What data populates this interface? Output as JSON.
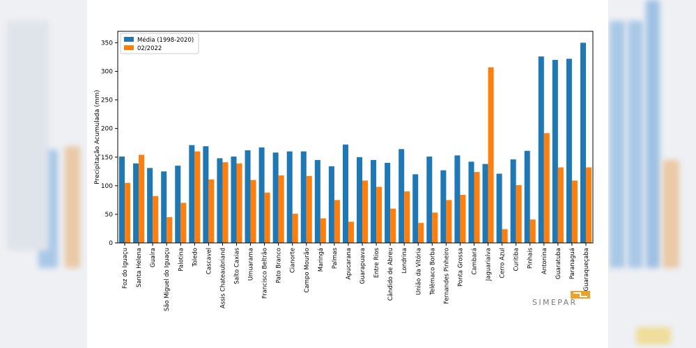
{
  "chart_data": {
    "type": "bar",
    "title": "",
    "xlabel": "",
    "ylabel": "Precipitação Acumulada (mm)",
    "ylim": [
      0,
      370
    ],
    "yticks": [
      0,
      50,
      100,
      150,
      200,
      250,
      300,
      350
    ],
    "grid": false,
    "legend_position": "top-left",
    "categories": [
      "Foz do Iguaçu",
      "Santa Helena",
      "Guaíra",
      "São Miguel do Iguaçu",
      "Palotina",
      "Toledo",
      "Cascavel",
      "Assis Chateaubriand",
      "Salto Caxias",
      "Umuarama",
      "Francisco Beltrão",
      "Pato Branco",
      "Cianorte",
      "Campo Mourão",
      "Maringá",
      "Palmas",
      "Apucarana",
      "Guarapuava",
      "Entre Rios",
      "Cândido de Abreu",
      "Londrina",
      "União da Vitória",
      "Telêmaco Borba",
      "Fernandes Pinheiro",
      "Ponta Grossa",
      "Cambará",
      "Jaguariaíva",
      "Cerro Azul",
      "Curitiba",
      "Pinhais",
      "Antonina",
      "Guaratuba",
      "Paranaguá",
      "Guaraqueçaba"
    ],
    "series": [
      {
        "name": "Média (1998-2020)",
        "color": "#1f77b4",
        "values": [
          151,
          139,
          131,
          125,
          135,
          171,
          169,
          148,
          151,
          162,
          167,
          158,
          160,
          160,
          145,
          134,
          172,
          150,
          145,
          140,
          164,
          120,
          151,
          127,
          153,
          142,
          138,
          121,
          146,
          161,
          326,
          320,
          322,
          350
        ]
      },
      {
        "name": "02/2022",
        "color": "#ff7f0e",
        "values": [
          105,
          154,
          82,
          45,
          70,
          160,
          111,
          141,
          139,
          110,
          88,
          118,
          51,
          117,
          43,
          75,
          37,
          109,
          98,
          60,
          90,
          35,
          53,
          75,
          84,
          124,
          307,
          24,
          101,
          41,
          192,
          132,
          109,
          132
        ]
      }
    ]
  },
  "watermark": {
    "text": "SIMEPAR",
    "color": "#e8a42a"
  },
  "icons": {
    "logo": "simepar-logo"
  }
}
